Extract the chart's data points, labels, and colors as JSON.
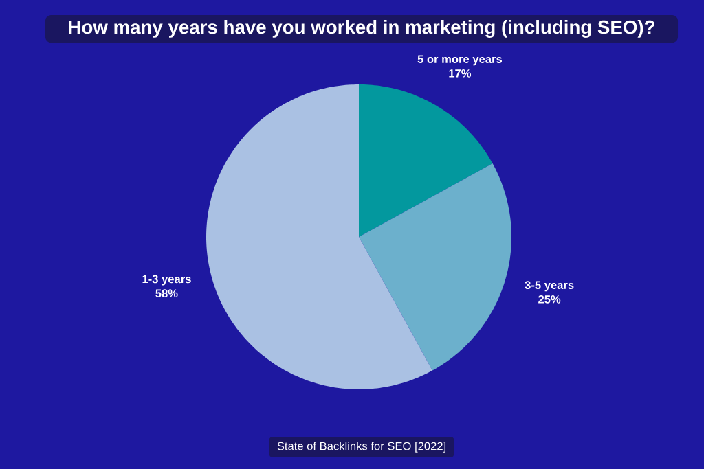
{
  "chart_data": {
    "type": "pie",
    "title": "How many years have you worked in marketing (including SEO)?",
    "categories": [
      "5 or more years",
      "3-5 years",
      "1-3 years"
    ],
    "values": [
      17,
      25,
      58
    ],
    "colors": [
      "#03989e",
      "#6cb0cc",
      "#aac1e3"
    ],
    "value_labels": [
      "17%",
      "25%",
      "58%"
    ],
    "annotations": [
      "State of Backlinks for SEO [2022]"
    ]
  }
}
